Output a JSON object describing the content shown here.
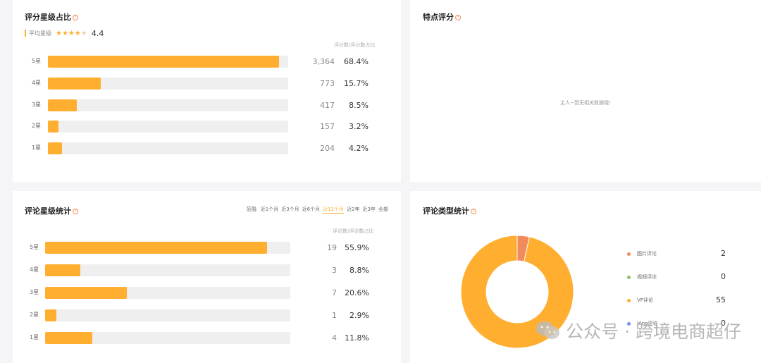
{
  "rating_card": {
    "title": "评分星级占比",
    "avg_label": "平均星级",
    "avg_value": "4.4",
    "avg_stars": 4.4,
    "column_header": "评分数/评分数占比",
    "rows": [
      {
        "label": "5星",
        "count": "3,364",
        "pct": "68.4%",
        "share": 0.684
      },
      {
        "label": "4星",
        "count": "773",
        "pct": "15.7%",
        "share": 0.157
      },
      {
        "label": "3星",
        "count": "417",
        "pct": "8.5%",
        "share": 0.085
      },
      {
        "label": "2星",
        "count": "157",
        "pct": "3.2%",
        "share": 0.032
      },
      {
        "label": "1星",
        "count": "204",
        "pct": "4.2%",
        "share": 0.042
      }
    ]
  },
  "feature_card": {
    "title": "特点评分",
    "empty_text": "主人~暂无相关数据哦!"
  },
  "stats_card": {
    "title": "评论星级统计",
    "range_label": "范围:",
    "ranges": [
      "近1个月",
      "近3个月",
      "近6个月",
      "近12个月",
      "近2年",
      "近3年",
      "全部"
    ],
    "active_range": "近12个月",
    "column_header": "评论数/评论数占比",
    "rows": [
      {
        "label": "5星",
        "count": "19",
        "pct": "55.9%",
        "share": 0.559
      },
      {
        "label": "4星",
        "count": "3",
        "pct": "8.8%",
        "share": 0.088
      },
      {
        "label": "3星",
        "count": "7",
        "pct": "20.6%",
        "share": 0.206
      },
      {
        "label": "2星",
        "count": "1",
        "pct": "2.9%",
        "share": 0.029
      },
      {
        "label": "1星",
        "count": "4",
        "pct": "11.8%",
        "share": 0.118
      }
    ]
  },
  "types_card": {
    "title": "评论类型统计",
    "legend": [
      {
        "label": "图片评论",
        "value": "2",
        "color": "#f28b5b"
      },
      {
        "label": "视频评论",
        "value": "0",
        "color": "#8dc06b"
      },
      {
        "label": "VP评论",
        "value": "55",
        "color": "#ffae30"
      },
      {
        "label": "Vine评论",
        "value": "0",
        "color": "#7b8cf0"
      }
    ]
  },
  "chart_data": {
    "type": "pie",
    "title": "评论类型统计",
    "categories": [
      "图片评论",
      "视频评论",
      "VP评论",
      "Vine评论"
    ],
    "values": [
      2,
      0,
      55,
      0
    ],
    "colors": [
      "#f28b5b",
      "#8dc06b",
      "#ffae30",
      "#7b8cf0"
    ],
    "legend": "right"
  },
  "watermark": {
    "text": "公众号 · 跨境电商超仔"
  },
  "colors": {
    "accent": "#ffae30",
    "track": "#efefef",
    "help": "#f28b5b"
  }
}
